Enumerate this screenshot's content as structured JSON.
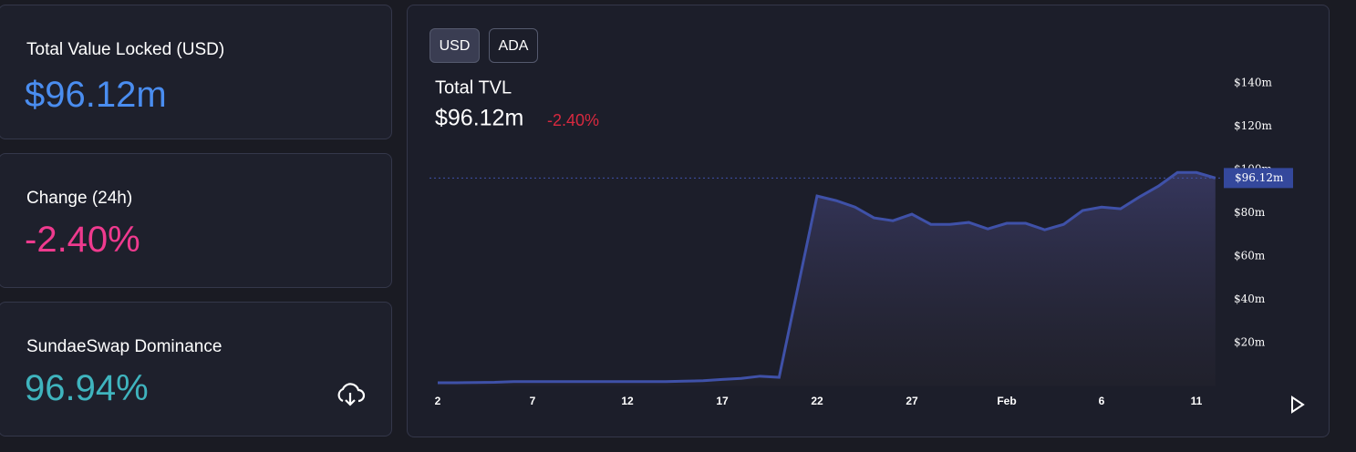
{
  "cards": [
    {
      "label": "Total Value Locked (USD)",
      "value": "$96.12m"
    },
    {
      "label": "Change (24h)",
      "value": "-2.40%"
    },
    {
      "label": "SundaeSwap Dominance",
      "value": "96.94%"
    }
  ],
  "toggle": [
    "USD",
    "ADA"
  ],
  "chart_data": {
    "type": "area",
    "title": "Total TVL",
    "value": "$96.12m",
    "change": "-2.40%",
    "categories": [
      "2",
      null,
      null,
      null,
      null,
      "7",
      null,
      null,
      null,
      null,
      "12",
      null,
      null,
      null,
      null,
      "17",
      null,
      null,
      null,
      null,
      "22",
      null,
      null,
      null,
      null,
      "27",
      null,
      null,
      null,
      null,
      "Feb",
      null,
      null,
      null,
      null,
      "6",
      null,
      null,
      null,
      null,
      "11",
      null
    ],
    "series": [
      {
        "color": "#3f51a8",
        "values": [
          1.5,
          1.5,
          1.6,
          1.7,
          2,
          2,
          2,
          2,
          2,
          2,
          2,
          2,
          2,
          2.2,
          2.4,
          3,
          3.5,
          4.5,
          4,
          46,
          87.8,
          85.7,
          82.7,
          77.7,
          76.4,
          79.4,
          74.7,
          74.7,
          75.6,
          72.6,
          75.2,
          75.2,
          72.2,
          74.7,
          81.1,
          82.7,
          81.9,
          87.4,
          92.4,
          98.7,
          98.7,
          96.12
        ]
      }
    ],
    "ylim": [
      0,
      150
    ],
    "yticks": [
      {
        "value": 20,
        "label": "$20m"
      },
      {
        "value": 40,
        "label": "$40m"
      },
      {
        "value": 60,
        "label": "$60m"
      },
      {
        "value": 80,
        "label": "$80m"
      },
      {
        "value": 100,
        "label": "$100m"
      },
      {
        "value": 120,
        "label": "$120m"
      },
      {
        "value": 140,
        "label": "$140m"
      }
    ],
    "grid": false
  }
}
